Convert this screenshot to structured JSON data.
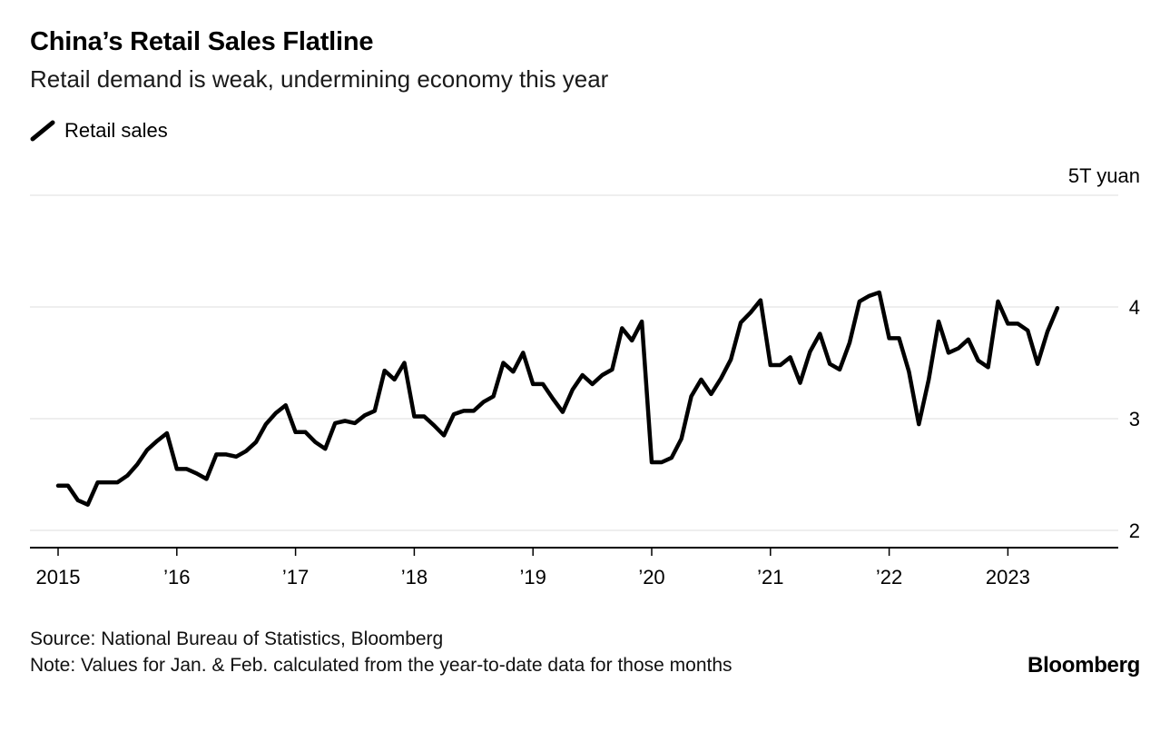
{
  "header": {
    "title": "China’s Retail Sales Flatline",
    "subtitle": "Retail demand is weak, undermining economy this year"
  },
  "legend": [
    {
      "label": "Retail sales",
      "color": "#000000",
      "marker": "diagonal-line"
    }
  ],
  "footer": {
    "source": "Source: National Bureau of Statistics, Bloomberg",
    "note": "Note: Values for Jan. & Feb. calculated from the year-to-date data for those months",
    "brand": "Bloomberg"
  },
  "chart_data": {
    "type": "line",
    "title": "China’s Retail Sales Flatline",
    "subtitle": "Retail demand is weak, undermining economy this year",
    "unit": "trillion yuan",
    "x_start": "2015-01",
    "x_end": "2023-06",
    "grid": "horizontal",
    "grid_color": "#dcdcdc",
    "axis_color": "#000000",
    "ylim": [
      1.78,
      5.0
    ],
    "y_ticks": [
      {
        "label": "2",
        "value": 2
      },
      {
        "label": "3",
        "value": 3
      },
      {
        "label": "4",
        "value": 4
      },
      {
        "label": "5T yuan",
        "value": 5
      }
    ],
    "x_ticks": [
      {
        "label": "2015",
        "month_index": 0
      },
      {
        "label": "’16",
        "month_index": 12
      },
      {
        "label": "’17",
        "month_index": 24
      },
      {
        "label": "’18",
        "month_index": 36
      },
      {
        "label": "’19",
        "month_index": 48
      },
      {
        "label": "’20",
        "month_index": 60
      },
      {
        "label": "’21",
        "month_index": 72
      },
      {
        "label": "’22",
        "month_index": 84
      },
      {
        "label": "2023",
        "month_index": 96
      }
    ],
    "series": [
      {
        "name": "Retail sales",
        "color": "#000000",
        "frequency": "monthly",
        "values": [
          2.4,
          2.4,
          2.27,
          2.23,
          2.43,
          2.43,
          2.43,
          2.49,
          2.59,
          2.72,
          2.8,
          2.87,
          2.55,
          2.55,
          2.51,
          2.46,
          2.68,
          2.68,
          2.66,
          2.71,
          2.79,
          2.95,
          3.05,
          3.12,
          2.88,
          2.88,
          2.79,
          2.73,
          2.96,
          2.98,
          2.96,
          3.03,
          3.07,
          3.43,
          3.35,
          3.5,
          3.02,
          3.02,
          2.94,
          2.85,
          3.04,
          3.07,
          3.07,
          3.15,
          3.2,
          3.5,
          3.42,
          3.59,
          3.31,
          3.31,
          3.18,
          3.06,
          3.26,
          3.39,
          3.31,
          3.39,
          3.44,
          3.81,
          3.7,
          3.87,
          2.61,
          2.61,
          2.65,
          2.82,
          3.2,
          3.35,
          3.22,
          3.36,
          3.53,
          3.86,
          3.95,
          4.06,
          3.48,
          3.48,
          3.55,
          3.32,
          3.6,
          3.76,
          3.49,
          3.44,
          3.68,
          4.05,
          4.1,
          4.13,
          3.72,
          3.72,
          3.42,
          2.95,
          3.35,
          3.87,
          3.59,
          3.63,
          3.71,
          3.52,
          3.46,
          4.05,
          3.85,
          3.85,
          3.79,
          3.49,
          3.78,
          3.99
        ]
      }
    ]
  }
}
